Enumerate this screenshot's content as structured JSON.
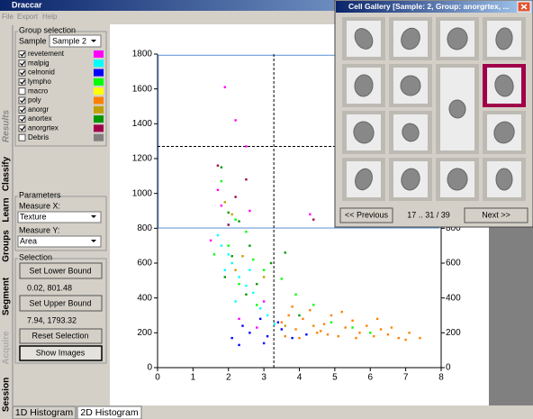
{
  "window": {
    "title": "Draccar",
    "menu": [
      "File",
      "Export",
      "Help"
    ]
  },
  "side_tabs": [
    "Results",
    "Classify",
    "Learn",
    "Groups",
    "Segment",
    "Acquire",
    "Session"
  ],
  "group_selection": {
    "title": "Group selection",
    "sample_label": "Sample",
    "sample": "Sample 2"
  },
  "parameters": {
    "title": "Parameters",
    "measure_x_label": "Measure X:",
    "measure_x": "Texture",
    "measure_y_label": "Measure Y:",
    "measure_y": "Area"
  },
  "selection": {
    "title": "Selection",
    "set_lower": "Set Lower Bound",
    "lower_bound": {
      "value": [
        0.02,
        801.48
      ],
      "label": "0.02, 801.48"
    },
    "set_upper": "Set Upper Bound",
    "upper_bound": {
      "value": [
        7.94,
        1793.32
      ],
      "label": "7.94, 1793.32"
    },
    "reset": "Reset Selection",
    "show_images": "Show Images"
  },
  "bottom_tabs": [
    "1D Histogram",
    "2D Histogram"
  ],
  "chart_data": {
    "type": "scatter",
    "xlim": [
      0,
      8
    ],
    "xticks": [
      0,
      1,
      2,
      3,
      4,
      5,
      6,
      7,
      8
    ],
    "ylim": [
      0,
      1800
    ],
    "yticks": [
      0,
      200,
      400,
      600,
      800,
      1000,
      1200,
      1400,
      1600,
      1800
    ],
    "right_axis": true,
    "crosshair": [
      3.28,
      1270
    ],
    "series": [
      {
        "name": "revetement",
        "color": "#ff00ff",
        "checked": true,
        "x": [
          1.9,
          2.2,
          2.5,
          1.7,
          1.8,
          2.6,
          4.3,
          3.0,
          2.3,
          2.8,
          1.5
        ],
        "y": [
          1610,
          1420,
          1270,
          1020,
          930,
          900,
          880,
          380,
          280,
          230,
          730
        ]
      },
      {
        "name": "malpig",
        "color": "#00ffff",
        "checked": true,
        "x": [
          1.7,
          1.8,
          2.0,
          2.1,
          2.3,
          2.5,
          1.9,
          2.7,
          2.9,
          3.1,
          2.2,
          2.6,
          3.3,
          2.0
        ],
        "y": [
          760,
          700,
          650,
          600,
          520,
          470,
          560,
          430,
          340,
          300,
          380,
          560,
          250,
          820
        ]
      },
      {
        "name": "celnonid",
        "color": "#0000ff",
        "checked": true,
        "x": [
          2.4,
          2.6,
          2.9,
          3.1,
          3.5,
          3.8,
          2.3,
          2.1,
          3.4,
          4.2,
          3.0
        ],
        "y": [
          240,
          200,
          280,
          180,
          220,
          170,
          130,
          170,
          260,
          190,
          140
        ]
      },
      {
        "name": "lympho",
        "color": "#00ff00",
        "checked": true,
        "x": [
          1.8,
          2.2,
          2.5,
          2.0,
          2.7,
          3.0,
          2.3,
          3.5,
          3.9,
          4.4,
          2.8,
          4.9,
          5.5,
          6.0,
          1.6
        ],
        "y": [
          1070,
          850,
          780,
          700,
          620,
          560,
          480,
          510,
          420,
          360,
          360,
          260,
          230,
          200,
          650
        ]
      },
      {
        "name": "macro",
        "color": "#ffff00",
        "checked": false,
        "x": [],
        "y": []
      },
      {
        "name": "poly",
        "color": "#ff8000",
        "checked": true,
        "x": [
          3.5,
          3.7,
          3.9,
          4.1,
          4.3,
          4.5,
          4.7,
          4.9,
          5.1,
          5.3,
          5.5,
          5.7,
          5.9,
          6.1,
          6.3,
          6.5,
          6.8,
          7.1,
          7.4,
          3.6,
          4.0,
          4.4,
          4.8,
          5.2,
          5.6,
          6.2,
          6.6,
          7.0,
          3.8,
          4.6
        ],
        "y": [
          260,
          300,
          220,
          280,
          330,
          200,
          250,
          300,
          180,
          230,
          270,
          200,
          240,
          180,
          220,
          190,
          170,
          200,
          170,
          180,
          170,
          240,
          190,
          320,
          170,
          280,
          230,
          160,
          350,
          210
        ]
      },
      {
        "name": "anorgr",
        "color": "#c0a000",
        "checked": true,
        "x": [
          1.9,
          2.1,
          2.4,
          3.0,
          2.2,
          3.6
        ],
        "y": [
          950,
          880,
          640,
          520,
          560,
          240
        ]
      },
      {
        "name": "anortex",
        "color": "#009900",
        "checked": true,
        "x": [
          1.8,
          2.0,
          2.3,
          2.1,
          2.6,
          2.8,
          3.2,
          3.6,
          2.5,
          4.0,
          1.9
        ],
        "y": [
          1150,
          890,
          840,
          640,
          700,
          480,
          600,
          660,
          420,
          300,
          520
        ]
      },
      {
        "name": "anorgrtex",
        "color": "#a0004a",
        "checked": true,
        "x": [
          2.2,
          2.5,
          4.4,
          2.0,
          1.7
        ],
        "y": [
          980,
          1080,
          850,
          820,
          1160
        ]
      },
      {
        "name": "Debris",
        "color": "#808080",
        "checked": false,
        "x": [],
        "y": []
      }
    ]
  },
  "gallery": {
    "title": "Cell Gallery [Sample: 2, Group: anorgrtex, ...",
    "previous": "<< Previous",
    "page": "17 .. 31 / 39",
    "next": "Next >>"
  }
}
